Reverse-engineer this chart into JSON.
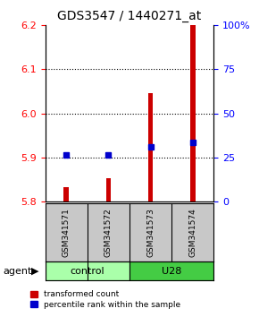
{
  "title": "GDS3547 / 1440271_at",
  "samples": [
    "GSM341571",
    "GSM341572",
    "GSM341573",
    "GSM341574"
  ],
  "red_values": [
    5.832,
    5.853,
    6.045,
    6.2
  ],
  "blue_values": [
    5.905,
    5.905,
    5.923,
    5.933
  ],
  "y_min": 5.8,
  "y_max": 6.2,
  "y_ticks": [
    5.8,
    5.9,
    6.0,
    6.1,
    6.2
  ],
  "y_right_ticks": [
    0,
    25,
    50,
    75,
    100
  ],
  "groups": [
    {
      "label": "control",
      "indices": [
        0,
        1
      ],
      "color": "#AAFFAA"
    },
    {
      "label": "U28",
      "indices": [
        2,
        3
      ],
      "color": "#44CC44"
    }
  ],
  "bar_width": 0.12,
  "red_color": "#CC0000",
  "blue_color": "#0000CC",
  "agent_label": "agent",
  "grid_ticks": [
    5.9,
    6.0,
    6.1
  ]
}
